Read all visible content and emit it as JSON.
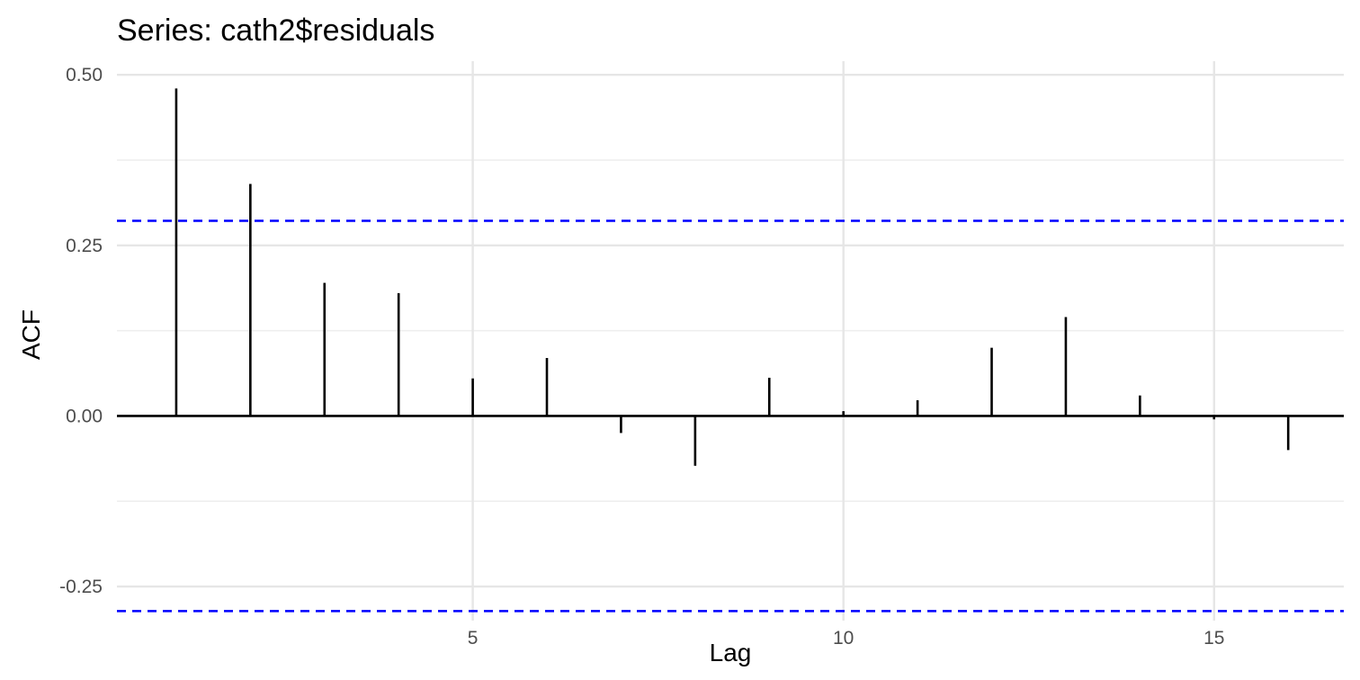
{
  "chart_data": {
    "type": "bar",
    "title": "Series: cath2$residuals",
    "xlabel": "Lag",
    "ylabel": "ACF",
    "x": [
      1,
      2,
      3,
      4,
      5,
      6,
      7,
      8,
      9,
      10,
      11,
      12,
      13,
      14,
      15,
      16
    ],
    "values": [
      0.48,
      0.34,
      0.195,
      0.18,
      0.055,
      0.085,
      -0.025,
      -0.073,
      0.056,
      0.007,
      0.023,
      0.1,
      0.145,
      0.03,
      -0.005,
      -0.05
    ],
    "confidence_bounds": [
      0.286,
      -0.286
    ],
    "xlim": [
      0.2,
      16.75
    ],
    "ylim": [
      -0.3,
      0.52
    ],
    "x_ticks": [
      5,
      10,
      15
    ],
    "x_tick_labels": [
      "5",
      "10",
      "15"
    ],
    "y_ticks": [
      -0.25,
      0,
      0.25,
      0.5
    ],
    "y_tick_labels": [
      "-0.25",
      "0.00",
      "0.25",
      "0.50"
    ],
    "grid": true,
    "legend": "none",
    "colors": {
      "bars": "#000000",
      "confidence": "#0000ff",
      "grid": "#e6e6e6"
    }
  }
}
